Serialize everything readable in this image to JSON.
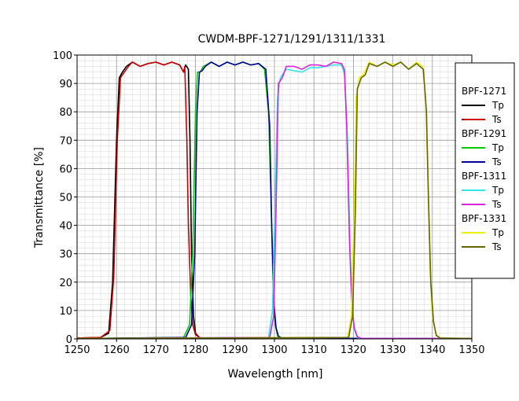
{
  "chart_data": {
    "type": "line",
    "title": "CWDM-BPF-1271/1291/1311/1331",
    "xlabel": "Wavelength [nm]",
    "ylabel": "Transmittance [%]",
    "xlim": [
      1250,
      1350
    ],
    "ylim": [
      0,
      100
    ],
    "x_ticks": [
      "1250",
      "1260",
      "1270",
      "1280",
      "1290",
      "1300",
      "1310",
      "1320",
      "1330",
      "1340",
      "1350"
    ],
    "y_ticks": [
      "0",
      "10",
      "20",
      "30",
      "40",
      "50",
      "60",
      "70",
      "80",
      "90",
      "100"
    ],
    "grid": true,
    "legend_position": "right",
    "groups": [
      {
        "name": "BPF-1271",
        "series": [
          {
            "name": "Tp",
            "color": "#000000",
            "x": [
              1250,
              1256,
              1258,
              1259,
              1260,
              1260.7,
              1261.5,
              1262.5,
              1264,
              1266,
              1268,
              1270,
              1272,
              1274,
              1276,
              1277,
              1277.5,
              1278.2,
              1278.6,
              1279,
              1279.5,
              1280,
              1281,
              1282,
              1350
            ],
            "y": [
              0.3,
              0.5,
              2,
              20,
              70,
              92,
              94,
              96,
              97.5,
              96,
              97,
              97.5,
              96.5,
              97.5,
              96.5,
              94,
              96.5,
              95,
              70,
              30,
              8,
              2,
              0.5,
              0.2,
              0.1
            ]
          },
          {
            "name": "Ts",
            "color": "#cc0000",
            "x": [
              1250,
              1256,
              1258.3,
              1259.3,
              1260.2,
              1261,
              1262,
              1263,
              1264,
              1266,
              1268,
              1270,
              1272,
              1274,
              1276,
              1277,
              1277.3,
              1277.8,
              1278.2,
              1278.8,
              1279.3,
              1280,
              1281,
              1282,
              1350
            ],
            "y": [
              0.3,
              0.5,
              3,
              22,
              70,
              92,
              94,
              96,
              97.5,
              96,
              97,
              97.5,
              96.5,
              97.5,
              96.5,
              94,
              96,
              70,
              40,
              15,
              5,
              1.5,
              0.5,
              0.2,
              0.1
            ]
          }
        ]
      },
      {
        "name": "BPF-1291",
        "series": [
          {
            "name": "Tp",
            "color": "#00cc00",
            "x": [
              1250,
              1277,
              1278.5,
              1279.3,
              1280,
              1280.5,
              1281.2,
              1282,
              1284,
              1286,
              1288,
              1290,
              1292,
              1294,
              1296,
              1297.5,
              1298.5,
              1299.2,
              1299.7,
              1300.2,
              1300.8,
              1302,
              1350
            ],
            "y": [
              0.1,
              0.5,
              5,
              30,
              80,
              94,
              94,
              96,
              97.5,
              96,
              97.5,
              96.5,
              97.5,
              96.5,
              97,
              95,
              80,
              45,
              15,
              5,
              1,
              0.2,
              0.1
            ]
          },
          {
            "name": "Ts",
            "color": "#000099",
            "x": [
              1250,
              1277.5,
              1279,
              1279.8,
              1280.4,
              1281,
              1281.7,
              1282.5,
              1284,
              1286,
              1288,
              1290,
              1292,
              1294,
              1296,
              1297.8,
              1298.8,
              1299.3,
              1299.9,
              1300.4,
              1301,
              1302,
              1350
            ],
            "y": [
              0.1,
              0.5,
              5,
              30,
              80,
              94,
              94.5,
              96,
              97.5,
              96,
              97.5,
              96.5,
              97.5,
              96.5,
              97,
              95,
              75,
              40,
              12,
              4,
              1,
              0.2,
              0.1
            ]
          }
        ]
      },
      {
        "name": "BPF-1311",
        "series": [
          {
            "name": "Tp",
            "color": "#33e6e6",
            "x": [
              1250,
              1298.5,
              1299.5,
              1300.2,
              1300.8,
              1301.5,
              1303,
              1305,
              1307,
              1309,
              1311,
              1313,
              1315,
              1317,
              1317.8,
              1318.5,
              1319.2,
              1319.8,
              1320.3,
              1321,
              1322,
              1350
            ],
            "y": [
              0.1,
              0.5,
              10,
              50,
              85,
              92,
              95,
              94.5,
              94,
              95.5,
              95.5,
              96,
              96.5,
              96.5,
              93,
              70,
              30,
              10,
              3,
              0.5,
              0.2,
              0.1
            ]
          },
          {
            "name": "Ts",
            "color": "#dd22dd",
            "x": [
              1250,
              1298.8,
              1299.8,
              1300.4,
              1301,
              1302,
              1303,
              1305,
              1307,
              1309,
              1311,
              1313,
              1315,
              1317,
              1317.7,
              1318.3,
              1319,
              1319.6,
              1320.2,
              1321,
              1322,
              1350
            ],
            "y": [
              0.1,
              0.5,
              8,
              45,
              90,
              92,
              96,
              96,
              95,
              96.5,
              96.5,
              96,
              97.5,
              97,
              95,
              75,
              35,
              12,
              4,
              0.8,
              0.2,
              0.1
            ]
          }
        ]
      },
      {
        "name": "BPF-1331",
        "series": [
          {
            "name": "Tp",
            "color": "#eeee00",
            "x": [
              1250,
              1318.5,
              1319.5,
              1320.2,
              1320.7,
              1321.5,
              1322.5,
              1324,
              1326,
              1328,
              1330,
              1332,
              1334,
              1336,
              1337.5,
              1338.3,
              1338.9,
              1339.4,
              1340,
              1341,
              1342,
              1350
            ],
            "y": [
              0.1,
              0.5,
              8,
              45,
              85,
              92,
              93,
              97.5,
              96,
              97.5,
              96.5,
              97.5,
              95,
              97.5,
              96,
              85,
              55,
              25,
              8,
              1.5,
              0.3,
              0.1
            ]
          },
          {
            "name": "Ts",
            "color": "#666600",
            "x": [
              1250,
              1318.8,
              1319.8,
              1320.5,
              1321,
              1322,
              1323,
              1324,
              1326,
              1328,
              1330,
              1332,
              1334,
              1336,
              1337.7,
              1338.5,
              1339,
              1339.6,
              1340.3,
              1341,
              1342,
              1350
            ],
            "y": [
              0.1,
              0.5,
              8,
              45,
              88,
              92,
              93,
              97,
              96,
              97.5,
              96,
              97.5,
              95,
              97,
              95,
              80,
              50,
              20,
              6,
              1.2,
              0.3,
              0.1
            ]
          }
        ]
      }
    ]
  }
}
